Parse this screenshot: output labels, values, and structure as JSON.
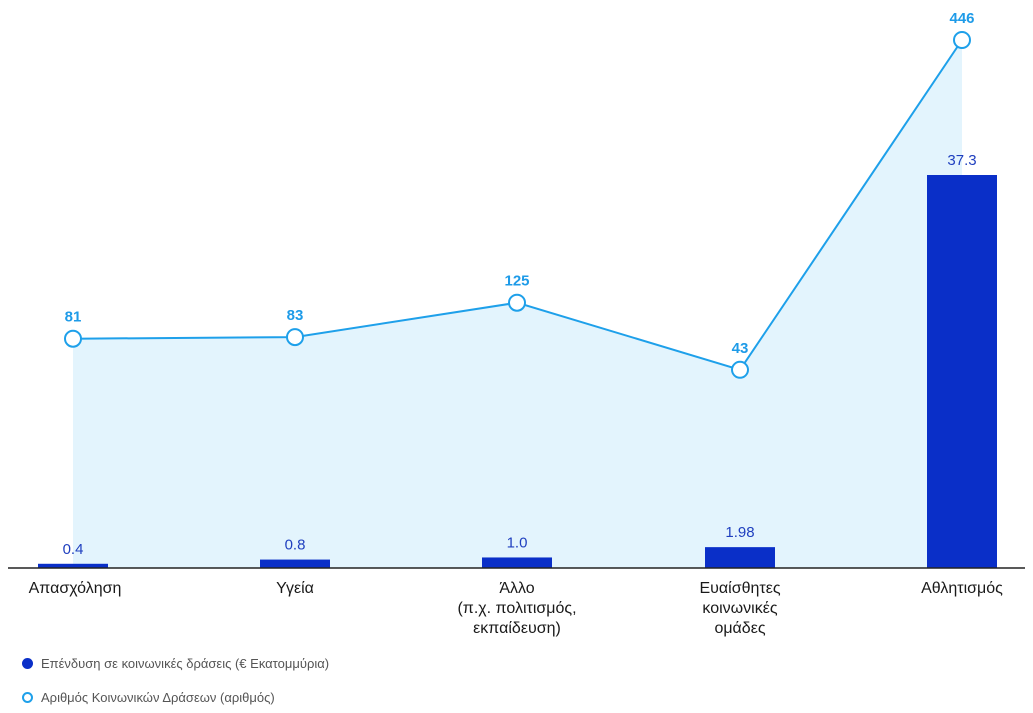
{
  "chart_data": {
    "type": "bar+line",
    "categories": [
      [
        "Απασχόληση"
      ],
      [
        "Υγεία"
      ],
      [
        "Άλλο",
        "(π.χ. πολιτισμός,",
        "εκπαίδευση)"
      ],
      [
        "Ευαίσθητες",
        "κοινωνικές",
        "ομάδες"
      ],
      [
        "Αθλητισμός"
      ]
    ],
    "series": [
      {
        "name": "Επένδυση σε κοινωνικές δράσεις (€ Εκατομμύρια)",
        "type": "bar",
        "values": [
          0.4,
          0.8,
          1.0,
          1.98,
          37.3
        ],
        "labels": [
          "0.4",
          "0.8",
          "1.0",
          "1.98",
          "37.3"
        ],
        "color": "#0a2fc8"
      },
      {
        "name": "Αριθμός Κοινωνικών Δράσεων (αριθμός)",
        "type": "line",
        "values": [
          81,
          83,
          125,
          43,
          446
        ],
        "labels": [
          "81",
          "83",
          "125",
          "43",
          "446"
        ],
        "color": "#1ea0ea",
        "fill": "#e3f4fd"
      }
    ],
    "legend": "bottom-left",
    "grid": false,
    "title": "",
    "xlabel": "",
    "ylabel": ""
  }
}
